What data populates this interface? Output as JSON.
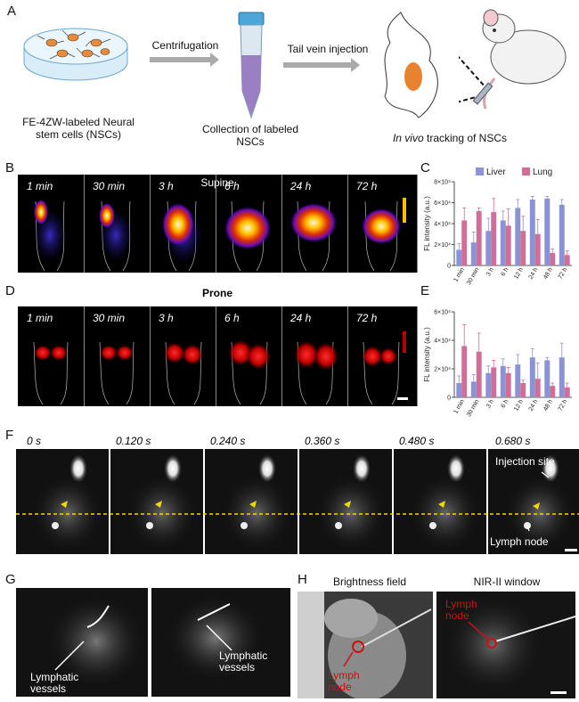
{
  "panels": {
    "A": "A",
    "B": "B",
    "C": "C",
    "D": "D",
    "E": "E",
    "F": "F",
    "G": "G",
    "H": "H"
  },
  "panel_a": {
    "cells_label_line1": "FE-4ZW-labeled Neural",
    "cells_label_line2": "stem cells (NSCs)",
    "step1": "Centrifugation",
    "collect_line1": "Collection of labeled",
    "collect_line2": "NSCs",
    "step2": "Tail vein injection",
    "track_italic": "In vivo",
    "track_rest": " tracking of NSCs"
  },
  "panel_b": {
    "title": "Supine",
    "times": [
      "1 min",
      "30 min",
      "3 h",
      "6 h",
      "24 h",
      "72 h"
    ]
  },
  "panel_d": {
    "title": "Prone",
    "times": [
      "1 min",
      "30 min",
      "3 h",
      "6 h",
      "24 h",
      "72 h"
    ]
  },
  "panel_f": {
    "times": [
      "0 s",
      "0.120 s",
      "0.240 s",
      "0.360 s",
      "0.480 s",
      "0.680 s"
    ],
    "injection_label": "Injection site",
    "lymph_label": "Lymph node"
  },
  "panel_g": {
    "label1_line1": "Lymphatic",
    "label1_line2": "vessels",
    "label2_line1": "Lymphatic",
    "label2_line2": "vessels"
  },
  "panel_h": {
    "title_left": "Brightness field",
    "title_right": "NIR-II window",
    "lymph_line1": "Lymph",
    "lymph_line2": "node",
    "lymph2_line1": "Lymph",
    "lymph2_line2": "node"
  },
  "colors": {
    "liver": "#8a93d6",
    "lung": "#cf6e96"
  },
  "chart_data": [
    {
      "type": "bar",
      "panel": "C",
      "categories": [
        "1 min",
        "30 min",
        "3 h",
        "6 h",
        "12 h",
        "24 h",
        "48 h",
        "72 h"
      ],
      "series": [
        {
          "name": "Liver",
          "values": [
            15000,
            22000,
            33000,
            43000,
            55000,
            63000,
            64000,
            58000
          ],
          "errors": [
            6000,
            10000,
            12000,
            9000,
            8000,
            3000,
            2000,
            5000
          ]
        },
        {
          "name": "Lung",
          "values": [
            43000,
            52000,
            51000,
            38000,
            33000,
            30000,
            12000,
            10000
          ],
          "errors": [
            12000,
            3000,
            13000,
            16000,
            14000,
            14000,
            4000,
            4000
          ]
        }
      ],
      "ylabel": "FL intensity (a.u.)",
      "yticks": [
        "0",
        "2×10⁴",
        "4×10⁴",
        "6×10⁴",
        "8×10⁴"
      ],
      "ylim": [
        0,
        80000
      ]
    },
    {
      "type": "bar",
      "panel": "E",
      "categories": [
        "1 min",
        "30 min",
        "3 h",
        "6 h",
        "12 h",
        "24 h",
        "48 h",
        "72 h"
      ],
      "series": [
        {
          "name": "Liver",
          "values": [
            10000,
            11000,
            17000,
            22000,
            23000,
            28000,
            26000,
            28000
          ],
          "errors": [
            5000,
            5000,
            5000,
            5000,
            7000,
            6000,
            2000,
            10000
          ]
        },
        {
          "name": "Lung",
          "values": [
            36000,
            32000,
            21000,
            17000,
            10000,
            13000,
            8000,
            7000
          ],
          "errors": [
            15000,
            13000,
            5000,
            4000,
            2000,
            11000,
            2000,
            3000
          ]
        }
      ],
      "ylabel": "FL intensity (a.u.)",
      "yticks": [
        "0",
        "2×10⁴",
        "4×10⁴",
        "6×10⁴"
      ],
      "ylim": [
        0,
        60000
      ]
    }
  ]
}
